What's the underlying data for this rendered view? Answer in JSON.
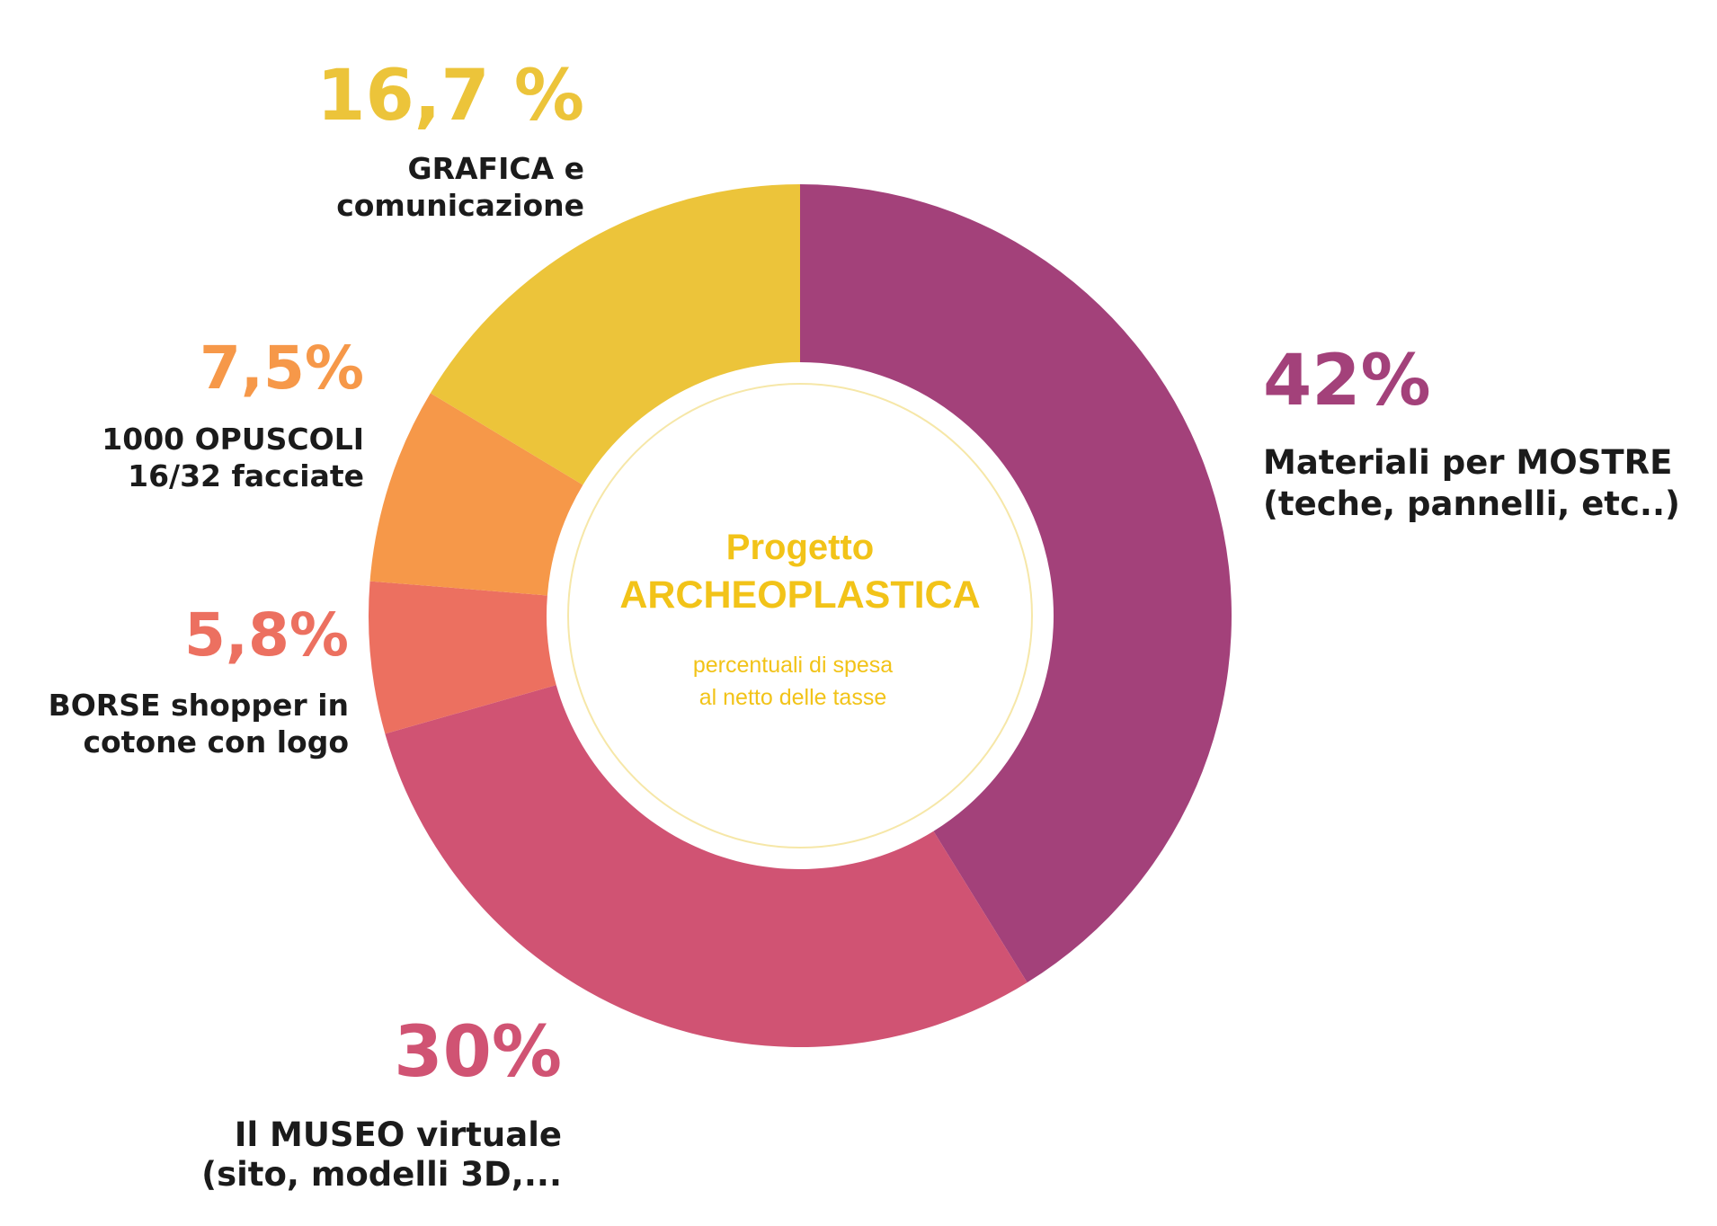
{
  "chart_data": {
    "type": "pie",
    "style": "donut",
    "center_title": [
      "Progetto",
      "ARCHEOPLASTICA"
    ],
    "center_subtitle": [
      "percentuali di spesa",
      "al netto delle tasse"
    ],
    "center_color": "#F2C318",
    "slices": [
      {
        "pct_label": "42%",
        "value": 42,
        "color": "#A3417A",
        "label": [
          "Materiali per MOSTRE",
          "(teche, pannelli, etc..)"
        ]
      },
      {
        "pct_label": "30%",
        "value": 30,
        "color": "#D05373",
        "label": [
          "Il MUSEO virtuale",
          "(sito, modelli 3D,..."
        ]
      },
      {
        "pct_label": "5,8%",
        "value": 5.8,
        "color": "#EC7060",
        "label": [
          "BORSE shopper in",
          "cotone con logo"
        ]
      },
      {
        "pct_label": "7,5%",
        "value": 7.5,
        "color": "#F69849",
        "label": [
          "1000 OPUSCOLI",
          "16/32 facciate"
        ]
      },
      {
        "pct_label": "16,7 %",
        "value": 16.7,
        "color": "#ECC43A",
        "label": [
          "GRAFICA e",
          "comunicazione"
        ]
      }
    ]
  }
}
